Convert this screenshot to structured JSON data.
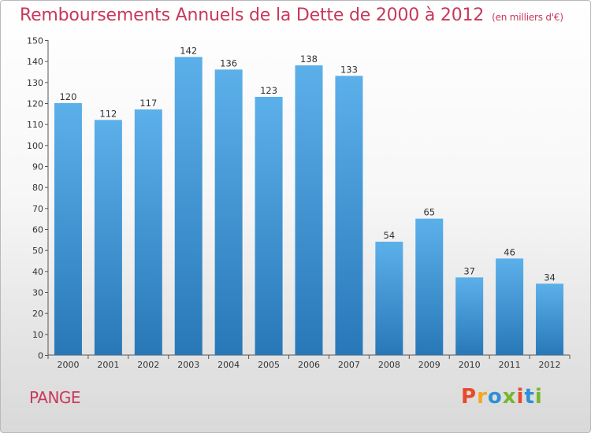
{
  "header": {
    "title": "Remboursements Annuels de la Dette de 2000 à 2012",
    "subtitle": "(en milliers d'€)"
  },
  "footer": {
    "commune": "PANGE",
    "brand": "Proxiti",
    "brand_colors": [
      "#e8492b",
      "#f5a623",
      "#2e8fd6",
      "#76b72a",
      "#e8492b",
      "#2e8fd6",
      "#76b72a"
    ]
  },
  "chart_data": {
    "type": "bar",
    "title": "Remboursements Annuels de la Dette de 2000 à 2012",
    "subtitle": "(en milliers d'€)",
    "categories": [
      "2000",
      "2001",
      "2002",
      "2003",
      "2004",
      "2005",
      "2006",
      "2007",
      "2008",
      "2009",
      "2010",
      "2011",
      "2012"
    ],
    "values": [
      120,
      112,
      117,
      142,
      136,
      123,
      138,
      133,
      54,
      65,
      37,
      46,
      34
    ],
    "ylim": [
      0,
      150
    ],
    "yticks": [
      0,
      10,
      20,
      30,
      40,
      50,
      60,
      70,
      80,
      90,
      100,
      110,
      120,
      130,
      140,
      150
    ],
    "grid": false,
    "legend": "none",
    "bar_color_top": "#5cb0ea",
    "bar_color_bottom": "#2878b8",
    "axis_color": "#555555"
  }
}
